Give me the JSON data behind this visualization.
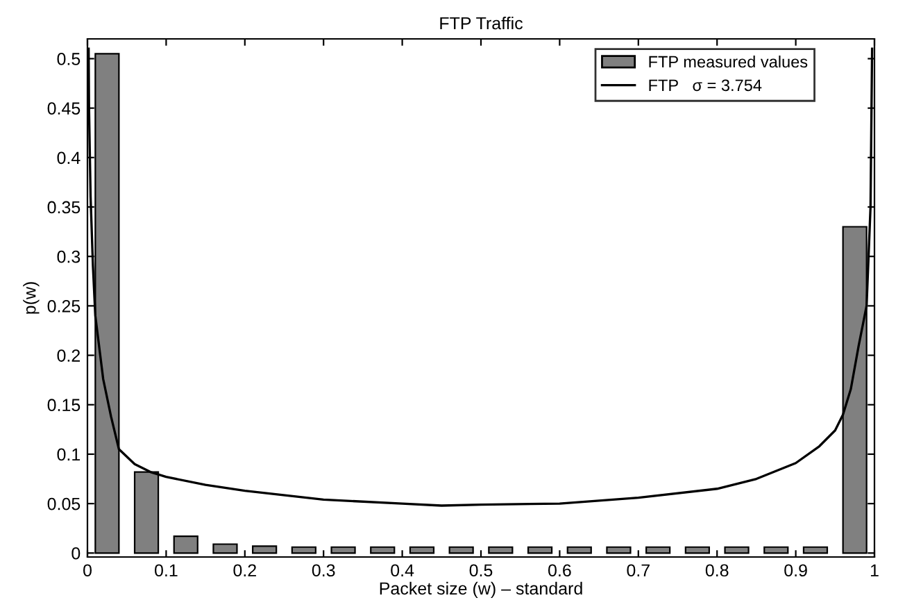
{
  "chart_data": {
    "type": "bar",
    "title": "FTP Traffic",
    "xlabel": "Packet size (w) – standard",
    "ylabel": "p(w)",
    "xlim": [
      0,
      1
    ],
    "ylim": [
      -0.004,
      0.52
    ],
    "xticks": [
      0,
      0.1,
      0.2,
      0.3,
      0.4,
      0.5,
      0.6,
      0.7,
      0.8,
      0.9,
      1
    ],
    "yticks": [
      0,
      0.05,
      0.1,
      0.15,
      0.2,
      0.25,
      0.3,
      0.35,
      0.4,
      0.45,
      0.5
    ],
    "grid": false,
    "legend": "top right",
    "series": [
      {
        "name": "FTP measured values",
        "color": "#808080",
        "x": [
          0.025,
          0.075,
          0.125,
          0.175,
          0.225,
          0.275,
          0.325,
          0.375,
          0.425,
          0.475,
          0.525,
          0.575,
          0.625,
          0.675,
          0.725,
          0.775,
          0.825,
          0.875,
          0.925,
          0.975
        ],
        "values": [
          0.505,
          0.082,
          0.017,
          0.009,
          0.007,
          0.006,
          0.006,
          0.006,
          0.006,
          0.006,
          0.006,
          0.006,
          0.006,
          0.006,
          0.006,
          0.006,
          0.006,
          0.006,
          0.006,
          0.33
        ]
      },
      {
        "name": "FTP   σ = 3.754",
        "type": "line",
        "color": "#000000",
        "x": [
          0.0015,
          0.002,
          0.004,
          0.007,
          0.01,
          0.02,
          0.03,
          0.04,
          0.06,
          0.08,
          0.1,
          0.15,
          0.2,
          0.3,
          0.4,
          0.45,
          0.5,
          0.6,
          0.7,
          0.8,
          0.85,
          0.9,
          0.93,
          0.95,
          0.96,
          0.97,
          0.98,
          0.99,
          0.995,
          0.997
        ],
        "values": [
          0.51,
          0.45,
          0.36,
          0.29,
          0.24,
          0.176,
          0.138,
          0.105,
          0.09,
          0.082,
          0.077,
          0.069,
          0.063,
          0.054,
          0.05,
          0.048,
          0.049,
          0.05,
          0.056,
          0.065,
          0.075,
          0.091,
          0.108,
          0.124,
          0.14,
          0.166,
          0.21,
          0.25,
          0.35,
          0.51
        ]
      }
    ]
  }
}
